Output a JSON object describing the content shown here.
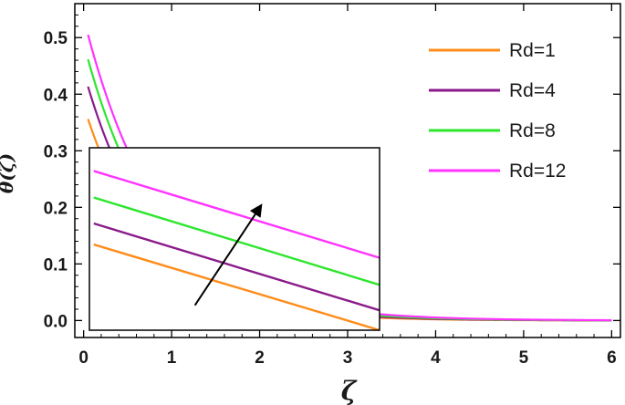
{
  "chart_data": {
    "type": "line",
    "xlabel": "ζ",
    "ylabel": "θ(ζ)",
    "xlim": [
      -0.1,
      6.1
    ],
    "ylim": [
      -0.03,
      0.56
    ],
    "xticks": [
      0,
      1,
      2,
      3,
      4,
      5,
      6
    ],
    "yticks": [
      0.0,
      0.1,
      0.2,
      0.3,
      0.4,
      0.5
    ],
    "xtick_labels": [
      "0",
      "1",
      "2",
      "3",
      "4",
      "5",
      "6"
    ],
    "ytick_labels": [
      "0.0",
      "0.1",
      "0.2",
      "0.3",
      "0.4",
      "0.5"
    ],
    "grid": false,
    "legend_position": "top-right",
    "series": [
      {
        "name": "Rd = 1",
        "label_display": "Rd=1",
        "color": "#ff8c1a",
        "theta0": 0.38,
        "decay": 1.3
      },
      {
        "name": "Rd = 4",
        "label_display": "Rd=4",
        "color": "#8b1a8b",
        "theta0": 0.44,
        "decay": 1.25
      },
      {
        "name": "Rd = 8",
        "label_display": "Rd=8",
        "color": "#2ee62e",
        "theta0": 0.49,
        "decay": 1.2
      },
      {
        "name": "Rd = 12",
        "label_display": "Rd=12",
        "color": "#ff33ff",
        "theta0": 0.535,
        "decay": 1.15
      }
    ],
    "inset": {
      "xlim": [
        0,
        3.3
      ],
      "ylim": [
        0.0,
        0.33
      ],
      "lines": [
        {
          "series": "Rd = 1",
          "x": [
            0.05,
            3.3
          ],
          "y": [
            0.155,
            0.0
          ]
        },
        {
          "series": "Rd = 4",
          "x": [
            0.05,
            3.3
          ],
          "y": [
            0.193,
            0.036
          ]
        },
        {
          "series": "Rd = 8",
          "x": [
            0.05,
            3.3
          ],
          "y": [
            0.24,
            0.082
          ]
        },
        {
          "series": "Rd = 12",
          "x": [
            0.05,
            3.3
          ],
          "y": [
            0.288,
            0.131
          ]
        }
      ],
      "arrow": {
        "from": [
          1.2,
          0.045
        ],
        "to": [
          1.95,
          0.225
        ],
        "meaning": "increasing Rd"
      }
    }
  }
}
